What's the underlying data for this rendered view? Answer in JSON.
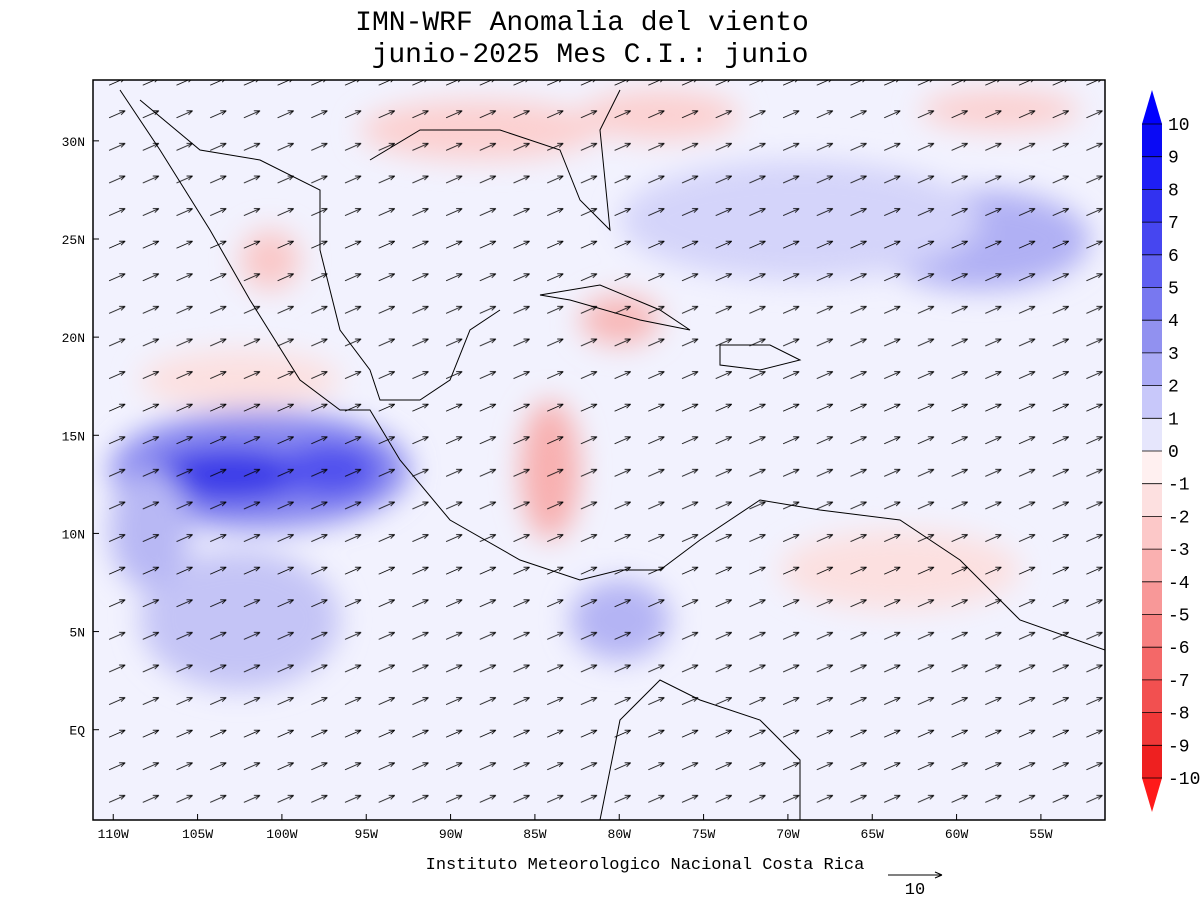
{
  "map": {
    "title": "IMN-WRF Anomalia del viento",
    "subtitle": "junio-2025 Mes C.I.: junio",
    "footer": "Instituto Meteorologico Nacional Costa Rica",
    "reference_vector": 10,
    "xlim": [
      -111.2,
      -51.2
    ],
    "ylim": [
      -4.6,
      33.1
    ],
    "xticks": [
      {
        "value": -110,
        "label": "110W"
      },
      {
        "value": -105,
        "label": "105W"
      },
      {
        "value": -100,
        "label": "100W"
      },
      {
        "value": -95,
        "label": "95W"
      },
      {
        "value": -90,
        "label": "90W"
      },
      {
        "value": -85,
        "label": "85W"
      },
      {
        "value": -80,
        "label": "80W"
      },
      {
        "value": -75,
        "label": "75W"
      },
      {
        "value": -70,
        "label": "70W"
      },
      {
        "value": -65,
        "label": "65W"
      },
      {
        "value": -60,
        "label": "60W"
      },
      {
        "value": -55,
        "label": "55W"
      }
    ],
    "yticks": [
      {
        "value": 30,
        "label": "30N"
      },
      {
        "value": 25,
        "label": "25N"
      },
      {
        "value": 20,
        "label": "20N"
      },
      {
        "value": 15,
        "label": "15N"
      },
      {
        "value": 10,
        "label": "10N"
      },
      {
        "value": 5,
        "label": "5N"
      },
      {
        "value": 0,
        "label": "EQ"
      }
    ],
    "colorbar": {
      "ticks": [
        10,
        9,
        8,
        7,
        6,
        5,
        4,
        3,
        2,
        1,
        0,
        -1,
        -2,
        -3,
        -4,
        -5,
        -6,
        -7,
        -8,
        -9,
        -10
      ],
      "over": "#0000ff",
      "under": "#ff1a1a",
      "colors": [
        "#0a0af5",
        "#1e1ef5",
        "#3232f0",
        "#4646f0",
        "#5f5ff0",
        "#7878f0",
        "#9191f0",
        "#aaaaf5",
        "#c8c8fa",
        "#e6e6fc",
        "#fff0f0",
        "#fde0e0",
        "#fcc8c8",
        "#fab0b0",
        "#f89898",
        "#f68080",
        "#f46868",
        "#f25050",
        "#f03838",
        "#ee2020"
      ]
    }
  }
}
